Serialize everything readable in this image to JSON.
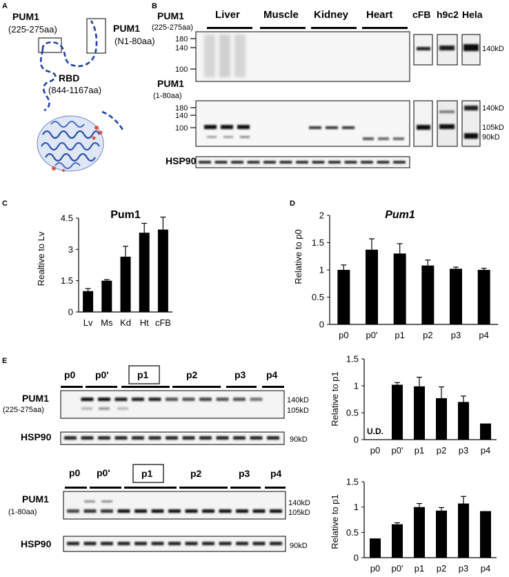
{
  "panel_a": {
    "letter": "A",
    "label_1": "PUM1",
    "label_1_range": "(225-275aa)",
    "label_2": "PUM1",
    "label_2_range": "(N1-80aa)",
    "label_3": "RBD",
    "label_3_range": "(844-1167aa)"
  },
  "panel_b": {
    "letter": "B",
    "tissues": [
      "Liver",
      "Muscle",
      "Kidney",
      "Heart"
    ],
    "cells": [
      "cFB",
      "h9c2",
      "Hela"
    ],
    "blot1_label": "PUM1",
    "blot1_range": "(225-275aa)",
    "blot1_markers": [
      "180",
      "140",
      "100"
    ],
    "blot1_kd": "140kD",
    "blot2_label": "PUM1",
    "blot2_range": "(1-80aa)",
    "blot2_markers": [
      "180",
      "140",
      "100"
    ],
    "blot2_kd": [
      "140kD",
      "105kD",
      "90kD"
    ],
    "hsp90_label": "HSP90"
  },
  "panel_e": {
    "letter": "E",
    "lanes_top": [
      "p0",
      "p0'",
      "p1",
      "p2",
      "p3",
      "p4"
    ],
    "lanes_bottom": [
      "p0",
      "p0'",
      "p1",
      "p2",
      "p3",
      "p4"
    ],
    "blot1_label": "PUM1",
    "blot1_range": "(225-275aa)",
    "blot1_kd": [
      "140kD",
      "105kD"
    ],
    "blot2_label": "PUM1",
    "blot2_range": "(1-80aa)",
    "blot2_kd": [
      "140kD",
      "105kD"
    ],
    "hsp90_label": "HSP90",
    "hsp90_kd": "90kD"
  },
  "chart_data": [
    {
      "panel": "C",
      "type": "bar",
      "title": "Pum1",
      "ylabel": "Realtive to Lv",
      "categories": [
        "Lv",
        "Ms",
        "Kd",
        "Ht",
        "cFB"
      ],
      "values": [
        1.0,
        1.5,
        2.65,
        3.8,
        3.95
      ],
      "errors": [
        0.12,
        0.05,
        0.5,
        0.45,
        0.6
      ],
      "ylim": [
        0,
        4.5
      ],
      "yticks": [
        "0",
        "1.5",
        "3",
        "4.5"
      ],
      "title_italic": false
    },
    {
      "panel": "D",
      "type": "bar",
      "title": "Pum1",
      "title_italic": true,
      "ylabel": "Relative to p0",
      "categories": [
        "p0",
        "p0'",
        "p1",
        "p2",
        "p3",
        "p4"
      ],
      "values": [
        1.0,
        1.37,
        1.3,
        1.08,
        1.02,
        1.0
      ],
      "errors": [
        0.09,
        0.2,
        0.18,
        0.1,
        0.03,
        0.03
      ],
      "ylim": [
        0,
        2
      ],
      "yticks": [
        "0",
        "0.5",
        "1",
        "1.5",
        "2"
      ]
    },
    {
      "panel": "E-top",
      "type": "bar",
      "title": "",
      "ylabel": "Relative to p1",
      "categories": [
        "p0",
        "p0'",
        "p1",
        "p2",
        "p3",
        "p4"
      ],
      "values": [
        0,
        1.02,
        0.99,
        0.77,
        0.7,
        0.3
      ],
      "errors": [
        0,
        0.04,
        0.17,
        0.21,
        0.11,
        0
      ],
      "ylim": [
        0,
        1.5
      ],
      "yticks": [
        "0",
        "0.5",
        "1",
        "1.5"
      ],
      "annotation": "U.D."
    },
    {
      "panel": "E-bottom",
      "type": "bar",
      "title": "",
      "ylabel": "Relative to p1",
      "categories": [
        "p0",
        "p0'",
        "p1",
        "p2",
        "p3",
        "p4"
      ],
      "values": [
        0.38,
        0.66,
        1.0,
        0.93,
        1.07,
        0.92
      ],
      "errors": [
        0,
        0.03,
        0.07,
        0.06,
        0.14,
        0
      ],
      "ylim": [
        0,
        1.5
      ],
      "yticks": [
        "0",
        "0.5",
        "1",
        "1.5"
      ]
    }
  ]
}
